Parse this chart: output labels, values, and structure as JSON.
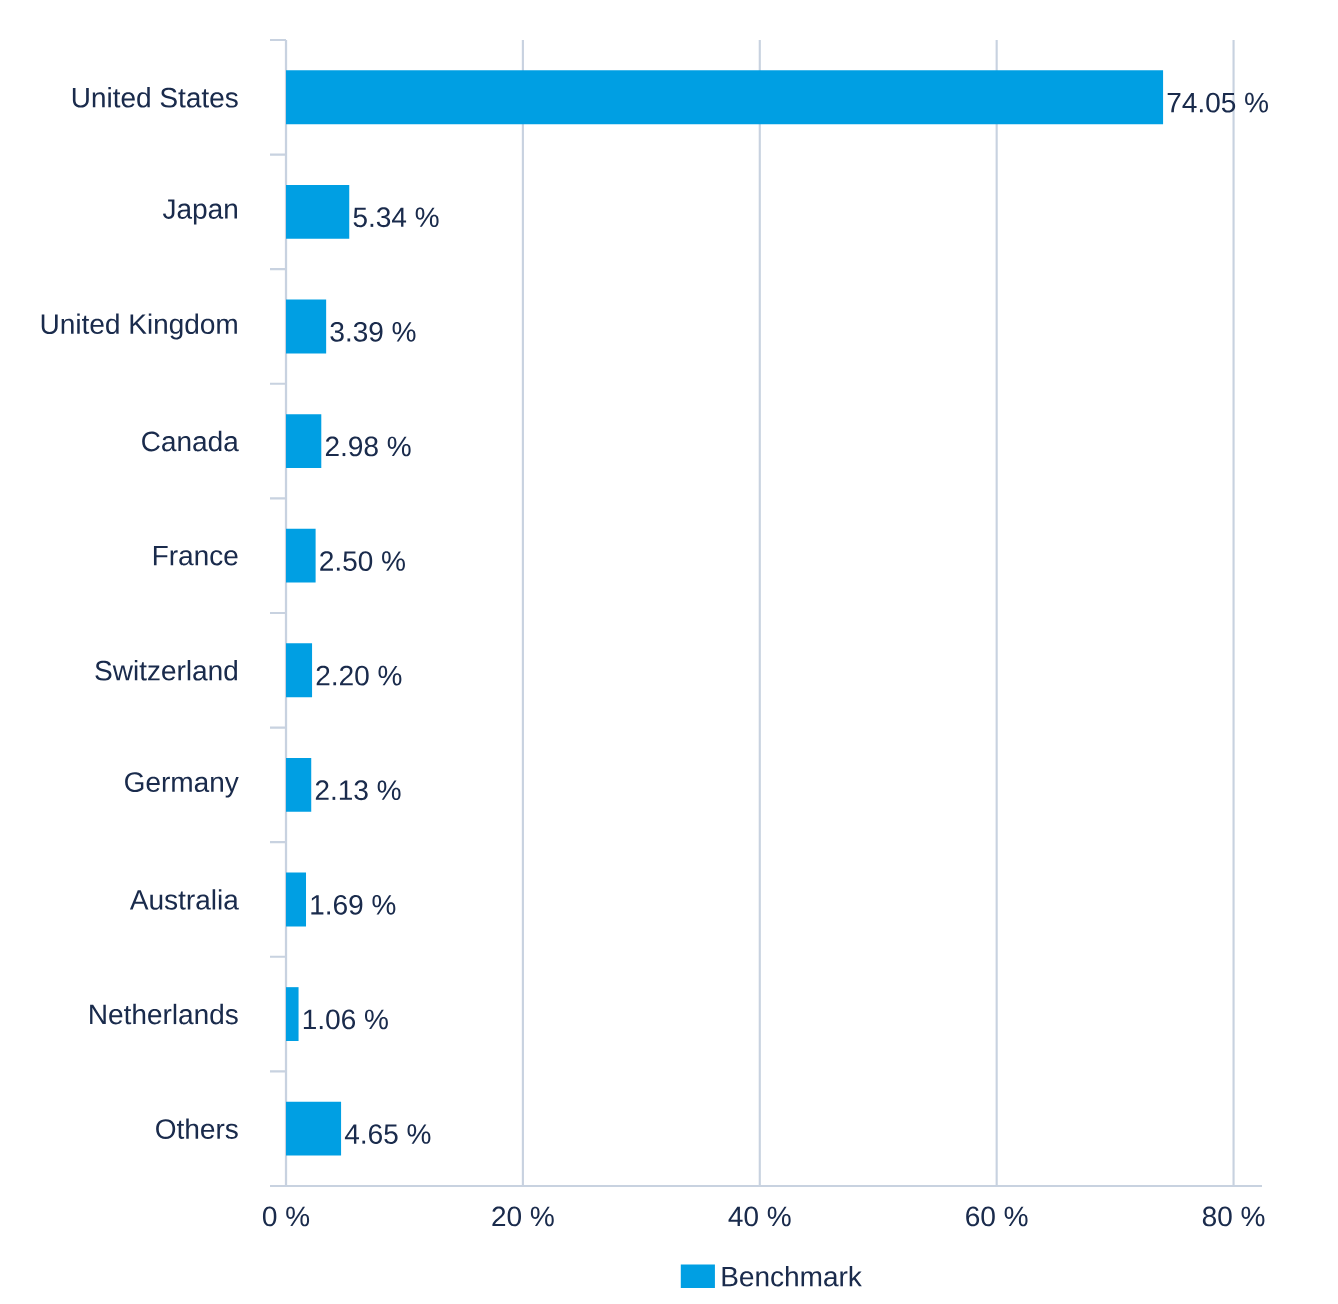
{
  "chart_data": {
    "type": "bar",
    "orientation": "horizontal",
    "categories": [
      "United States",
      "Japan",
      "United Kingdom",
      "Canada",
      "France",
      "Switzerland",
      "Germany",
      "Australia",
      "Netherlands",
      "Others"
    ],
    "series": [
      {
        "name": "Benchmark",
        "color": "#009fe3",
        "values": [
          74.05,
          5.34,
          3.39,
          2.98,
          2.5,
          2.2,
          2.13,
          1.69,
          1.06,
          4.65
        ],
        "value_labels": [
          "74.05 %",
          "5.34 %",
          "3.39 %",
          "2.98 %",
          "2.50 %",
          "2.20 %",
          "2.13 %",
          "1.69 %",
          "1.06 %",
          "4.65 %"
        ]
      }
    ],
    "xlim": [
      0,
      82.4
    ],
    "xticks": [
      {
        "value": 0,
        "label": "0 %"
      },
      {
        "value": 20,
        "label": "20 %"
      },
      {
        "value": 40,
        "label": "40 %"
      },
      {
        "value": 60,
        "label": "60 %"
      },
      {
        "value": 80,
        "label": "80 %"
      }
    ],
    "grid": "x",
    "legend": "bottom"
  }
}
